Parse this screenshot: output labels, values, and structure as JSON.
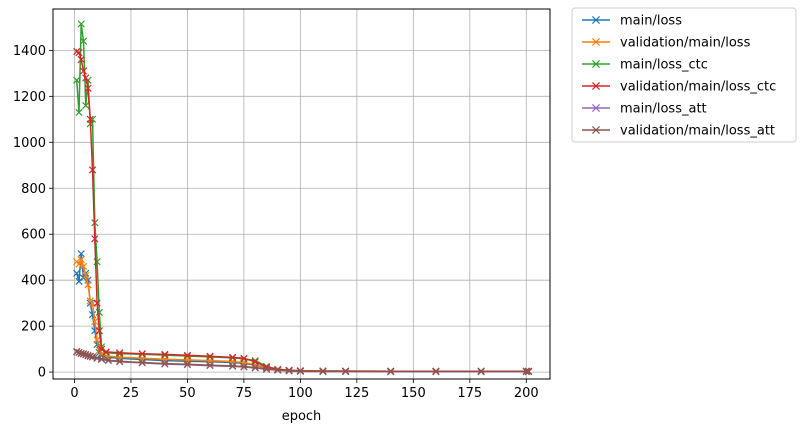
{
  "chart_data": {
    "type": "line",
    "xlabel": "epoch",
    "ylabel": "",
    "xlim": [
      -9.5,
      210.5
    ],
    "ylim": [
      -30,
      1580
    ],
    "xticks": [
      0,
      25,
      50,
      75,
      100,
      125,
      150,
      175,
      200
    ],
    "yticks": [
      0,
      200,
      400,
      600,
      800,
      1000,
      1200,
      1400
    ],
    "grid": true,
    "marker": "x",
    "legend_position": "outside-top-right",
    "series": [
      {
        "name": "main/loss",
        "color": "#1f77b4",
        "points": [
          [
            1,
            430
          ],
          [
            2,
            395
          ],
          [
            3,
            515
          ],
          [
            4,
            410
          ],
          [
            5,
            430
          ],
          [
            6,
            400
          ],
          [
            7,
            300
          ],
          [
            8,
            250
          ],
          [
            9,
            180
          ],
          [
            10,
            120
          ],
          [
            11,
            85
          ],
          [
            12,
            72
          ],
          [
            14,
            65
          ],
          [
            20,
            60
          ],
          [
            30,
            55
          ],
          [
            40,
            50
          ],
          [
            50,
            47
          ],
          [
            60,
            45
          ],
          [
            70,
            42
          ],
          [
            75,
            38
          ],
          [
            80,
            30
          ],
          [
            85,
            18
          ],
          [
            90,
            10
          ],
          [
            95,
            6
          ],
          [
            100,
            4
          ],
          [
            110,
            3
          ],
          [
            120,
            3
          ],
          [
            140,
            2
          ],
          [
            160,
            2
          ],
          [
            180,
            2
          ],
          [
            200,
            2
          ],
          [
            201,
            2
          ]
        ]
      },
      {
        "name": "validation/main/loss",
        "color": "#ff7f0e",
        "points": [
          [
            1,
            480
          ],
          [
            2,
            470
          ],
          [
            3,
            490
          ],
          [
            4,
            460
          ],
          [
            5,
            420
          ],
          [
            6,
            380
          ],
          [
            7,
            310
          ],
          [
            8,
            300
          ],
          [
            9,
            220
          ],
          [
            10,
            140
          ],
          [
            11,
            95
          ],
          [
            12,
            78
          ],
          [
            14,
            70
          ],
          [
            20,
            65
          ],
          [
            30,
            60
          ],
          [
            40,
            56
          ],
          [
            50,
            53
          ],
          [
            60,
            50
          ],
          [
            70,
            46
          ],
          [
            75,
            42
          ],
          [
            80,
            32
          ],
          [
            85,
            20
          ],
          [
            90,
            12
          ],
          [
            95,
            7
          ],
          [
            100,
            5
          ],
          [
            110,
            4
          ],
          [
            120,
            4
          ],
          [
            140,
            3
          ],
          [
            160,
            3
          ],
          [
            180,
            3
          ],
          [
            200,
            3
          ],
          [
            201,
            3
          ]
        ]
      },
      {
        "name": "main/loss_ctc",
        "color": "#2ca02c",
        "points": [
          [
            1,
            1270
          ],
          [
            2,
            1130
          ],
          [
            3,
            1515
          ],
          [
            4,
            1440
          ],
          [
            5,
            1160
          ],
          [
            6,
            1270
          ],
          [
            7,
            1080
          ],
          [
            8,
            1100
          ],
          [
            9,
            650
          ],
          [
            10,
            480
          ],
          [
            11,
            260
          ],
          [
            12,
            110
          ],
          [
            14,
            85
          ],
          [
            20,
            80
          ],
          [
            30,
            78
          ],
          [
            40,
            74
          ],
          [
            50,
            70
          ],
          [
            60,
            66
          ],
          [
            70,
            62
          ],
          [
            75,
            58
          ],
          [
            80,
            50
          ],
          [
            85,
            25
          ],
          [
            90,
            12
          ],
          [
            95,
            8
          ],
          [
            100,
            6
          ],
          [
            110,
            5
          ],
          [
            120,
            4
          ],
          [
            140,
            4
          ],
          [
            160,
            4
          ],
          [
            180,
            4
          ],
          [
            200,
            4
          ],
          [
            201,
            4
          ]
        ]
      },
      {
        "name": "validation/main/loss_ctc",
        "color": "#d62728",
        "points": [
          [
            1,
            1395
          ],
          [
            2,
            1390
          ],
          [
            3,
            1360
          ],
          [
            4,
            1310
          ],
          [
            5,
            1280
          ],
          [
            6,
            1235
          ],
          [
            7,
            1100
          ],
          [
            8,
            880
          ],
          [
            9,
            580
          ],
          [
            10,
            300
          ],
          [
            11,
            180
          ],
          [
            12,
            100
          ],
          [
            14,
            88
          ],
          [
            20,
            84
          ],
          [
            30,
            80
          ],
          [
            40,
            77
          ],
          [
            50,
            73
          ],
          [
            60,
            69
          ],
          [
            70,
            64
          ],
          [
            75,
            60
          ],
          [
            80,
            45
          ],
          [
            85,
            22
          ],
          [
            90,
            12
          ],
          [
            95,
            8
          ],
          [
            100,
            6
          ],
          [
            110,
            5
          ],
          [
            120,
            5
          ],
          [
            140,
            4
          ],
          [
            160,
            4
          ],
          [
            180,
            4
          ],
          [
            200,
            4
          ],
          [
            201,
            4
          ]
        ]
      },
      {
        "name": "main/loss_att",
        "color": "#9467bd",
        "points": [
          [
            1,
            90
          ],
          [
            2,
            85
          ],
          [
            3,
            80
          ],
          [
            4,
            78
          ],
          [
            5,
            75
          ],
          [
            6,
            70
          ],
          [
            7,
            68
          ],
          [
            8,
            65
          ],
          [
            10,
            60
          ],
          [
            12,
            55
          ],
          [
            15,
            50
          ],
          [
            20,
            45
          ],
          [
            30,
            40
          ],
          [
            40,
            35
          ],
          [
            50,
            32
          ],
          [
            60,
            28
          ],
          [
            70,
            25
          ],
          [
            75,
            22
          ],
          [
            80,
            18
          ],
          [
            85,
            12
          ],
          [
            90,
            8
          ],
          [
            95,
            5
          ],
          [
            100,
            3
          ],
          [
            110,
            2
          ],
          [
            120,
            2
          ],
          [
            140,
            2
          ],
          [
            160,
            2
          ],
          [
            180,
            2
          ],
          [
            200,
            2
          ],
          [
            201,
            2
          ]
        ]
      },
      {
        "name": "validation/main/loss_att",
        "color": "#8c564b",
        "points": [
          [
            1,
            88
          ],
          [
            2,
            86
          ],
          [
            3,
            82
          ],
          [
            4,
            80
          ],
          [
            5,
            77
          ],
          [
            6,
            73
          ],
          [
            7,
            70
          ],
          [
            8,
            67
          ],
          [
            10,
            62
          ],
          [
            12,
            57
          ],
          [
            15,
            52
          ],
          [
            20,
            47
          ],
          [
            30,
            42
          ],
          [
            40,
            37
          ],
          [
            50,
            34
          ],
          [
            60,
            30
          ],
          [
            70,
            27
          ],
          [
            75,
            24
          ],
          [
            80,
            20
          ],
          [
            85,
            13
          ],
          [
            90,
            9
          ],
          [
            95,
            6
          ],
          [
            100,
            4
          ],
          [
            110,
            3
          ],
          [
            120,
            3
          ],
          [
            140,
            2
          ],
          [
            160,
            2
          ],
          [
            180,
            2
          ],
          [
            200,
            2
          ],
          [
            201,
            2
          ]
        ]
      }
    ]
  }
}
